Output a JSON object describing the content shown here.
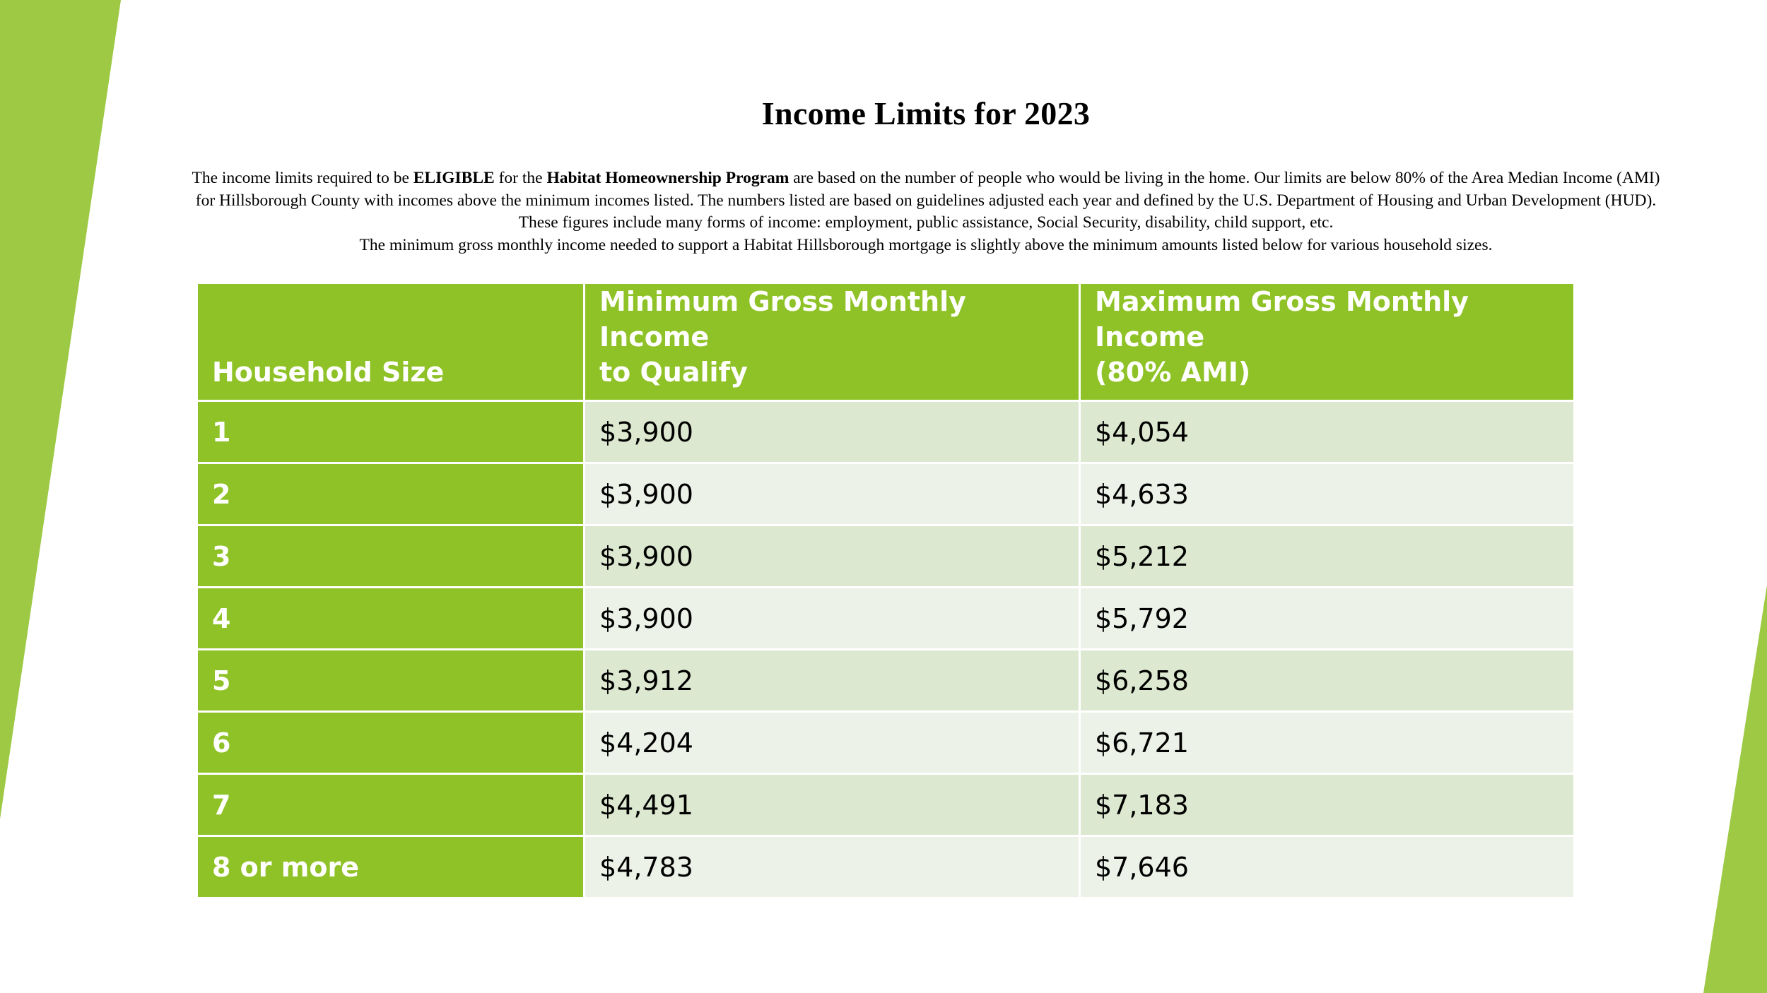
{
  "page": {
    "title": "Income Limits for 2023",
    "accent_color": "#8fc227",
    "row_colors": [
      "#dce8cf",
      "#edf2e8"
    ]
  },
  "intro": {
    "p1": "The income limits required to be ",
    "eligible": "ELIGIBLE",
    "p2": " for the ",
    "program": "Habitat Homeownership Program",
    "p3": " are based on the number of people who would be living in the home. Our limits are below 80% of the Area Median Income (AMI) for Hillsborough County with incomes above the minimum incomes listed. The numbers listed are based on guidelines adjusted each year and defined by the U.S. Department of Housing and Urban Development (HUD). These figures include many forms of income: employment, public assistance, Social Security, disability, child support, etc.",
    "p4": "The minimum gross monthly income needed to support a Habitat Hillsborough mortgage is slightly above the minimum amounts listed below for various household sizes."
  },
  "table": {
    "headers": {
      "household_size": "Household Size",
      "min_line1": "Minimum Gross Monthly Income",
      "min_line2": "to Qualify",
      "max_line1": "Maximum Gross Monthly Income",
      "max_line2": "(80% AMI)"
    },
    "rows": [
      {
        "size": "1",
        "min": "$3,900",
        "max": "$4,054"
      },
      {
        "size": "2",
        "min": "$3,900",
        "max": "$4,633"
      },
      {
        "size": "3",
        "min": "$3,900",
        "max": "$5,212"
      },
      {
        "size": "4",
        "min": "$3,900",
        "max": "$5,792"
      },
      {
        "size": "5",
        "min": "$3,912",
        "max": "$6,258"
      },
      {
        "size": "6",
        "min": "$4,204",
        "max": "$6,721"
      },
      {
        "size": "7",
        "min": "$4,491",
        "max": "$7,183"
      },
      {
        "size": "8 or more",
        "min": "$4,783",
        "max": "$7,646"
      }
    ]
  }
}
